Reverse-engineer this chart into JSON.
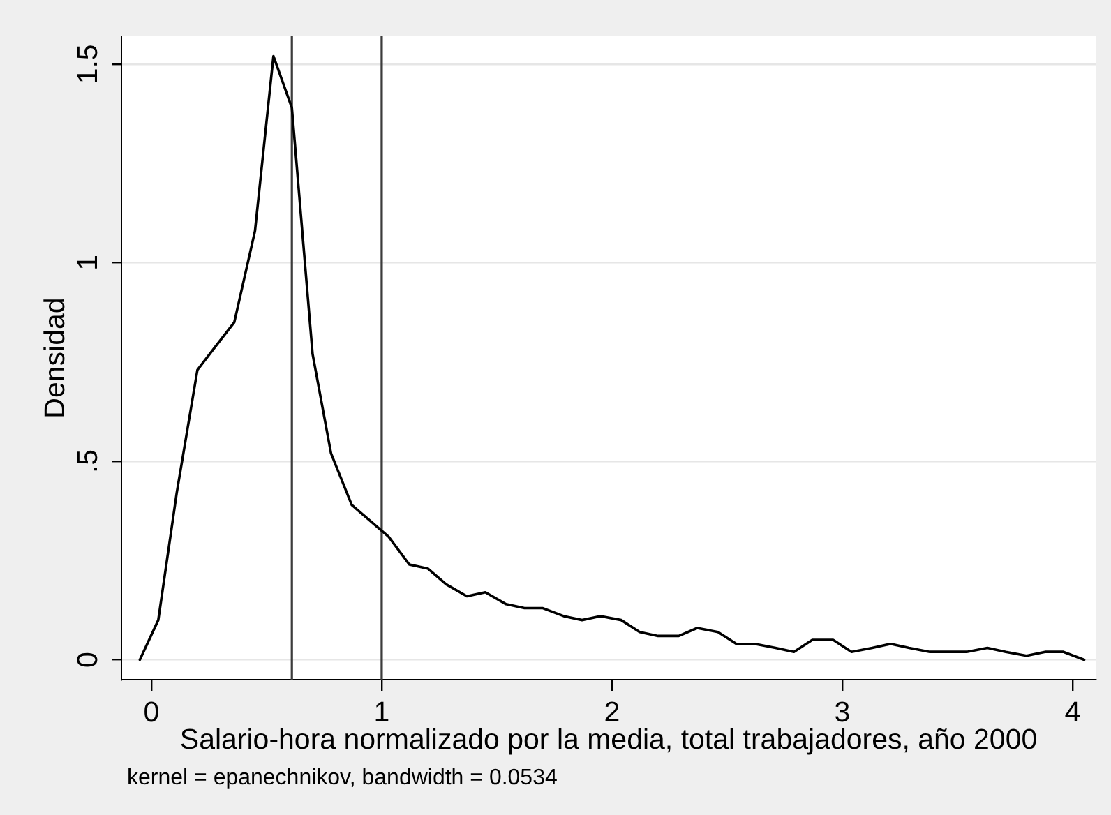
{
  "chart_data": {
    "type": "line",
    "xlabel": "Salario-hora normalizado por la media, total trabajadores, año 2000",
    "ylabel": "Densidad",
    "annotations": [
      "kernel = epanechnikov, bandwidth = 0.0534"
    ],
    "x": [
      -0.05,
      0.03,
      0.11,
      0.2,
      0.28,
      0.36,
      0.45,
      0.53,
      0.61,
      0.7,
      0.78,
      0.87,
      0.95,
      1.03,
      1.12,
      1.2,
      1.28,
      1.37,
      1.45,
      1.54,
      1.62,
      1.7,
      1.79,
      1.87,
      1.95,
      2.04,
      2.12,
      2.2,
      2.29,
      2.37,
      2.46,
      2.54,
      2.62,
      2.71,
      2.79,
      2.87,
      2.96,
      3.04,
      3.13,
      3.21,
      3.29,
      3.38,
      3.46,
      3.54,
      3.63,
      3.71,
      3.8,
      3.88,
      3.96,
      4.05
    ],
    "series": [
      {
        "color": "#000000",
        "values": [
          0,
          0.1,
          0.42,
          0.73,
          0.79,
          0.85,
          1.08,
          1.52,
          1.39,
          0.77,
          0.52,
          0.39,
          0.35,
          0.31,
          0.24,
          0.23,
          0.19,
          0.16,
          0.17,
          0.14,
          0.13,
          0.13,
          0.11,
          0.1,
          0.11,
          0.1,
          0.07,
          0.06,
          0.06,
          0.08,
          0.07,
          0.04,
          0.04,
          0.03,
          0.02,
          0.05,
          0.05,
          0.02,
          0.03,
          0.04,
          0.03,
          0.02,
          0.02,
          0.02,
          0.03,
          0.02,
          0.01,
          0.02,
          0.02,
          0
        ]
      }
    ],
    "xlim": [
      -0.13,
      4.1
    ],
    "ylim": [
      -0.05,
      1.57
    ],
    "xticks": [
      0,
      1,
      2,
      3,
      4
    ],
    "yticks": [
      0,
      {
        "value": 0.5,
        "label": ".5"
      },
      1,
      1.5
    ],
    "grid": "y",
    "ref_lines": [
      {
        "axis": "x",
        "value": 0.61,
        "color": "#3c3c3c"
      },
      {
        "axis": "x",
        "value": 1,
        "color": "#3c3c3c"
      }
    ]
  }
}
